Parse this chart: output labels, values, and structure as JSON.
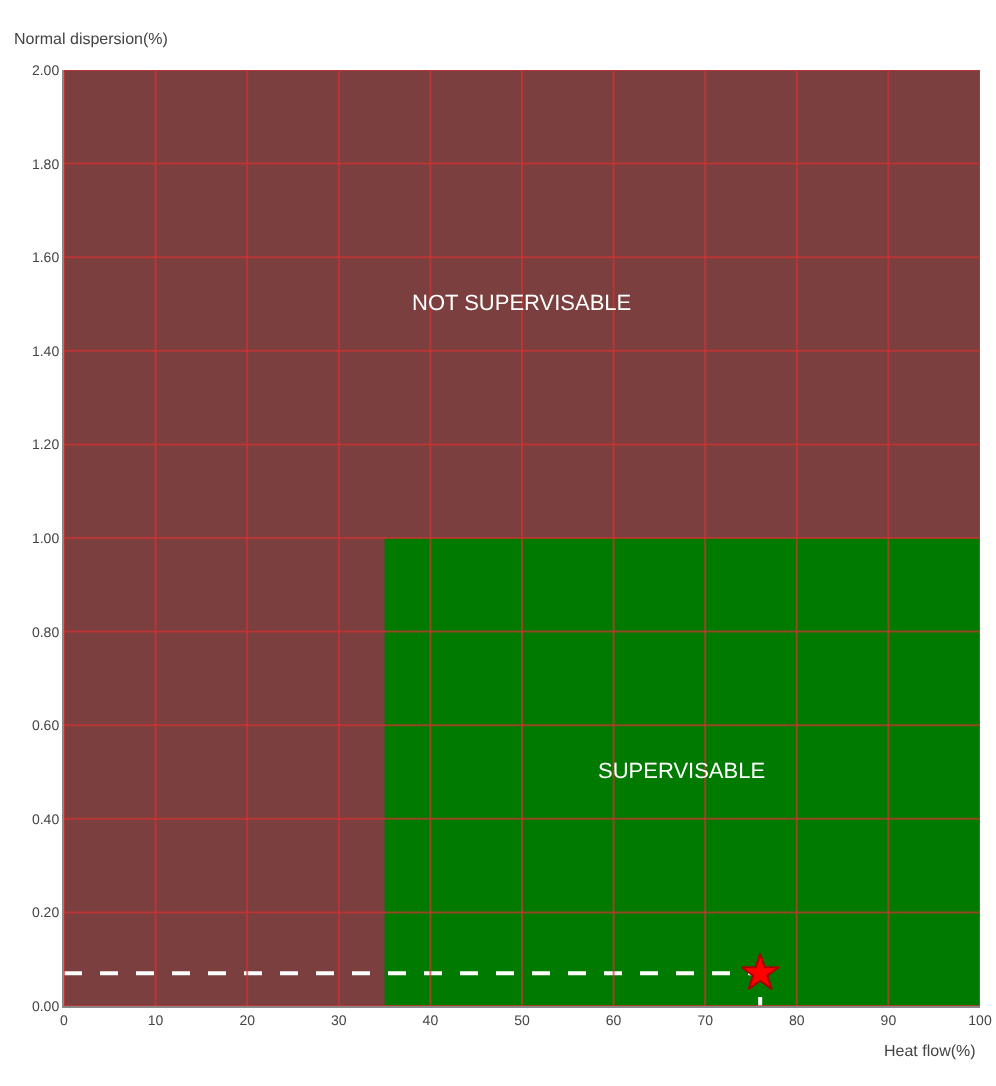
{
  "chart_data": {
    "type": "area",
    "xlabel": "Heat flow(%)",
    "ylabel": "Normal dispersion(%)",
    "xlim": [
      0,
      100
    ],
    "xticks": [
      0,
      10,
      20,
      30,
      40,
      50,
      60,
      70,
      80,
      90,
      100
    ],
    "ylim": [
      0,
      2
    ],
    "yticks": [
      {
        "value": 0,
        "label": "0.00"
      },
      {
        "value": 0.2,
        "label": "0.20"
      },
      {
        "value": 0.4,
        "label": "0.40"
      },
      {
        "value": 0.6,
        "label": "0.60"
      },
      {
        "value": 0.8,
        "label": "0.80"
      },
      {
        "value": 1,
        "label": "1.00"
      },
      {
        "value": 1.2,
        "label": "1.20"
      },
      {
        "value": 1.4,
        "label": "1.40"
      },
      {
        "value": 1.6,
        "label": "1.60"
      },
      {
        "value": 1.8,
        "label": "1.80"
      },
      {
        "value": 2,
        "label": "2.00"
      }
    ],
    "grid": true,
    "series": [
      {
        "name": "NOT SUPERVISABLE",
        "color": "#7b3f3f",
        "x": [
          0,
          100
        ],
        "values": [
          2,
          2
        ]
      },
      {
        "name": "SUPERVISABLE",
        "color": "#007a00",
        "x": [
          35,
          100
        ],
        "values": [
          1,
          1
        ]
      },
      {
        "type": "line",
        "color": "#ffffff",
        "line_style": "dashed",
        "x": [
          0,
          76,
          76
        ],
        "values": [
          0.07,
          0.07,
          0
        ]
      },
      {
        "type": "scatter",
        "color": "#ff0000",
        "marker": "star",
        "x": [
          76
        ],
        "values": [
          0.07
        ]
      }
    ]
  }
}
